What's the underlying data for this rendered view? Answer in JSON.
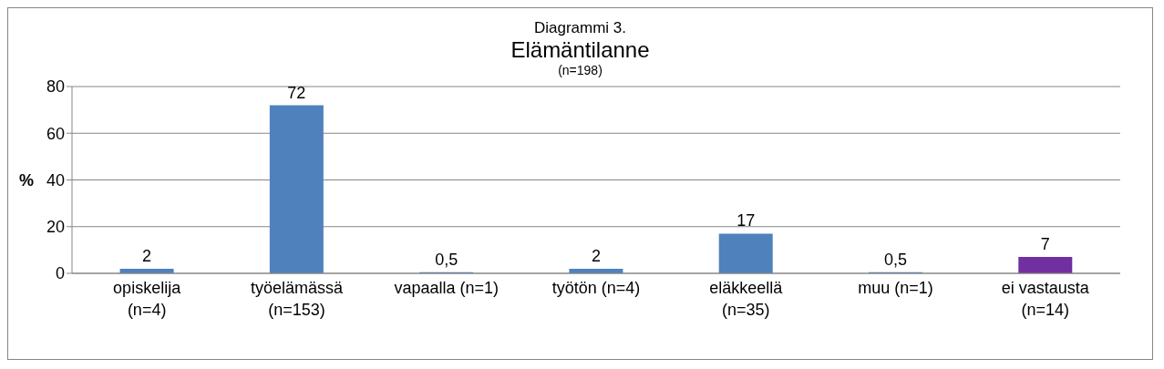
{
  "chart_data": {
    "type": "bar",
    "title": "Diagrammi 3.",
    "subtitle": "Elämäntilanne",
    "annotations": [
      "(n=198)"
    ],
    "ylabel": "%",
    "categories": [
      "opiskelija\n(n=4)",
      "työelämässä\n(n=153)",
      "vapaalla (n=1)",
      "työtön (n=4)",
      "eläkkeellä\n(n=35)",
      "muu (n=1)",
      "ei vastausta\n(n=14)"
    ],
    "values": [
      2,
      72,
      0.5,
      2,
      17,
      0.5,
      7
    ],
    "value_labels": [
      "2",
      "72",
      "0,5",
      "2",
      "17",
      "0,5",
      "7"
    ],
    "colors": [
      "#4f81bd",
      "#4f81bd",
      "#4f81bd",
      "#4f81bd",
      "#4f81bd",
      "#4f81bd",
      "#7030a0"
    ],
    "ylim": [
      0,
      80
    ],
    "yticks": [
      0,
      20,
      40,
      60,
      80
    ],
    "grid": "y"
  }
}
